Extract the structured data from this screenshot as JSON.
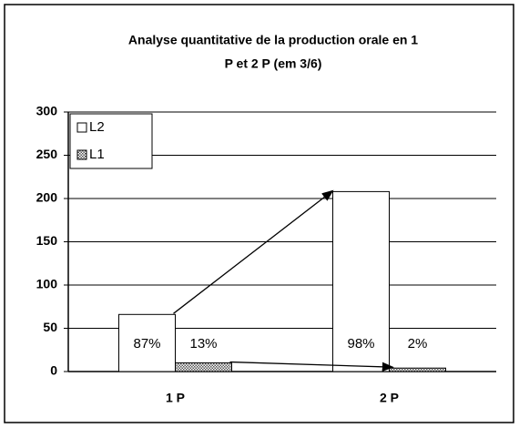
{
  "chart_data": {
    "type": "bar",
    "title": [
      "Analyse quantitative de la production orale en 1",
      "P et 2 P (em 3/6)"
    ],
    "categories": [
      "1 P",
      "2 P"
    ],
    "series": [
      {
        "name": "L2",
        "color": "#ffffff",
        "values": [
          66,
          208
        ],
        "annotations": [
          "87%",
          "98%"
        ]
      },
      {
        "name": "L1",
        "color": "#999999",
        "pattern": "dots",
        "values": [
          10,
          4
        ],
        "annotations": [
          "13%",
          "2%"
        ]
      }
    ],
    "ylim": [
      0,
      300
    ],
    "yticks": [
      0,
      50,
      100,
      150,
      200,
      250,
      300
    ],
    "grid": true,
    "legend": "top-left"
  }
}
